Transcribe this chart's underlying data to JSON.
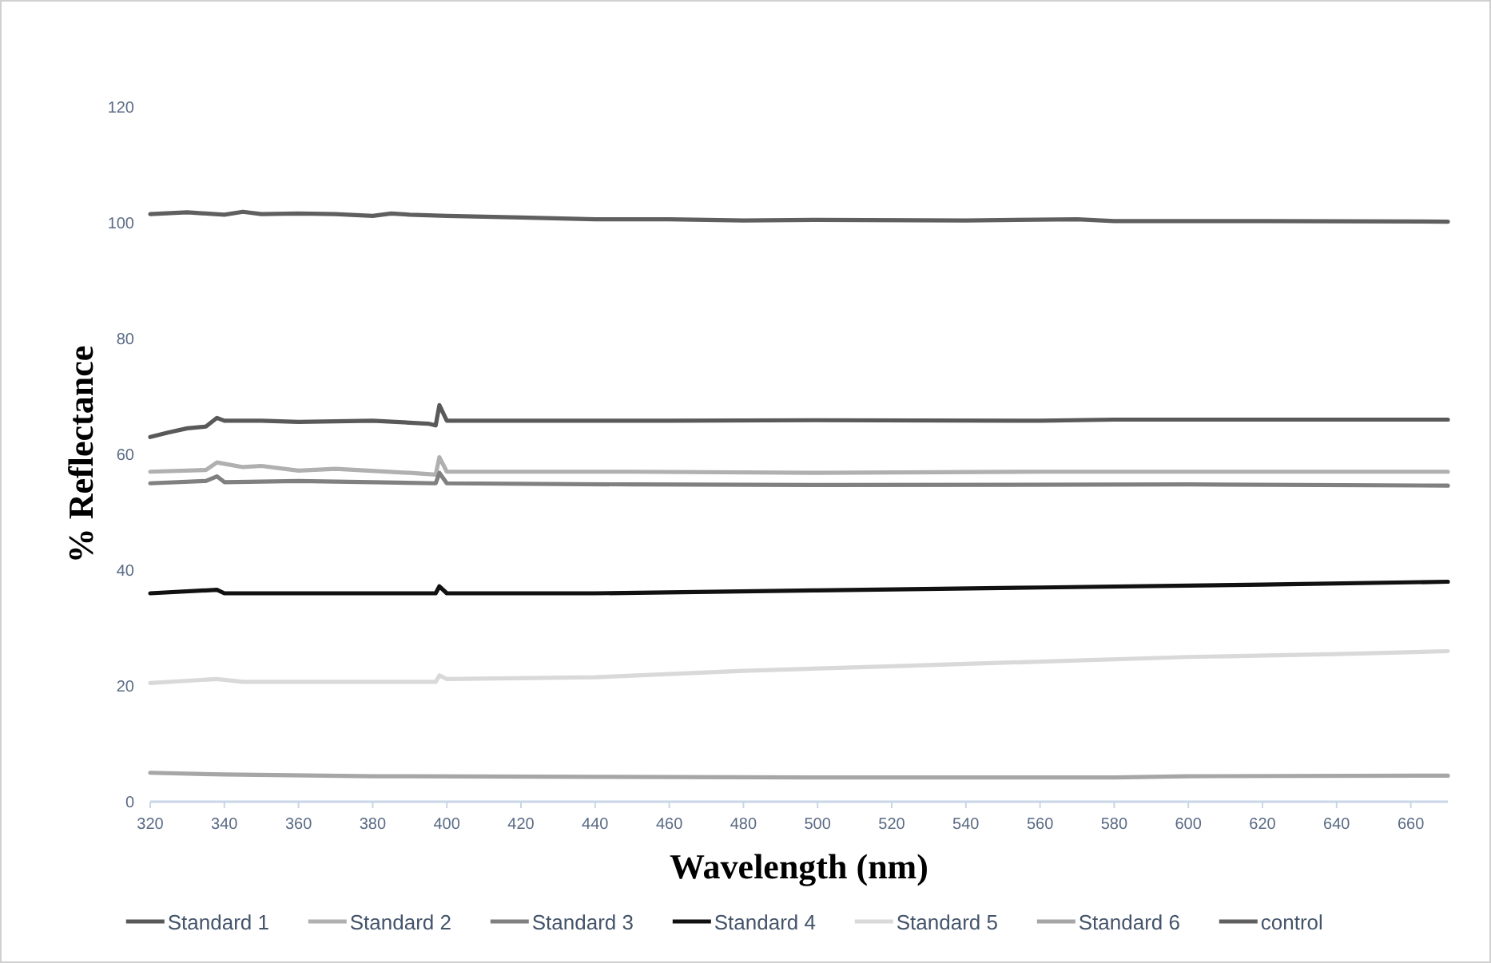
{
  "chart_data": {
    "type": "line",
    "xlabel": "Wavelength (nm)",
    "ylabel": "% Reflectance",
    "xlim": [
      320,
      670
    ],
    "xticks": [
      320,
      340,
      360,
      380,
      400,
      420,
      440,
      460,
      480,
      500,
      520,
      540,
      560,
      580,
      600,
      620,
      640,
      660
    ],
    "ylim": [
      0,
      120
    ],
    "yticks": [
      0,
      20,
      40,
      60,
      80,
      100,
      120
    ],
    "grid": false,
    "legend": "bottom",
    "line_style": "solid",
    "series": [
      {
        "name": "Standard 1",
        "color": "#595959",
        "x": [
          320,
          325,
          330,
          335,
          338,
          340,
          350,
          360,
          380,
          395,
          397,
          398,
          400,
          420,
          460,
          500,
          560,
          580,
          670
        ],
        "values": [
          63,
          63.8,
          64.5,
          64.8,
          66.3,
          65.8,
          65.8,
          65.6,
          65.8,
          65.3,
          65,
          68.5,
          65.8,
          65.8,
          65.8,
          65.9,
          65.8,
          66,
          66
        ]
      },
      {
        "name": "Standard 2",
        "color": "#b0b0b0",
        "x": [
          320,
          335,
          338,
          345,
          350,
          360,
          370,
          390,
          397,
          398,
          400,
          450,
          500,
          560,
          670
        ],
        "values": [
          57,
          57.3,
          58.6,
          57.8,
          58,
          57.2,
          57.5,
          56.8,
          56.5,
          59.5,
          57,
          57,
          56.8,
          57,
          57
        ]
      },
      {
        "name": "Standard 3",
        "color": "#808080",
        "x": [
          320,
          335,
          338,
          340,
          360,
          380,
          397,
          398,
          400,
          450,
          500,
          600,
          670
        ],
        "values": [
          55,
          55.4,
          56.2,
          55.2,
          55.4,
          55.2,
          55,
          56.8,
          55,
          54.8,
          54.7,
          54.8,
          54.6
        ]
      },
      {
        "name": "Standard 4",
        "color": "#111111",
        "x": [
          320,
          338,
          340,
          397,
          398,
          400,
          440,
          500,
          560,
          620,
          670
        ],
        "values": [
          36,
          36.6,
          36,
          36,
          37.2,
          36,
          36,
          36.5,
          37,
          37.5,
          38
        ]
      },
      {
        "name": "Standard 5",
        "color": "#d9d9d9",
        "x": [
          320,
          338,
          345,
          397,
          398,
          400,
          440,
          480,
          520,
          560,
          600,
          640,
          670
        ],
        "values": [
          20.5,
          21.2,
          20.7,
          20.7,
          21.8,
          21.2,
          21.5,
          22.6,
          23.4,
          24.2,
          25,
          25.5,
          26
        ]
      },
      {
        "name": "Standard 6",
        "color": "#a6a6a6",
        "x": [
          320,
          340,
          380,
          440,
          500,
          580,
          600,
          670
        ],
        "values": [
          5,
          4.7,
          4.4,
          4.3,
          4.2,
          4.2,
          4.4,
          4.5
        ]
      },
      {
        "name": "control",
        "color": "#5f5f5f",
        "x": [
          320,
          330,
          340,
          345,
          350,
          360,
          370,
          380,
          385,
          390,
          400,
          420,
          440,
          460,
          480,
          500,
          540,
          570,
          580,
          620,
          670
        ],
        "values": [
          101.5,
          101.8,
          101.4,
          101.9,
          101.5,
          101.6,
          101.5,
          101.2,
          101.6,
          101.4,
          101.2,
          100.9,
          100.6,
          100.6,
          100.4,
          100.5,
          100.4,
          100.6,
          100.3,
          100.3,
          100.2
        ]
      }
    ]
  }
}
